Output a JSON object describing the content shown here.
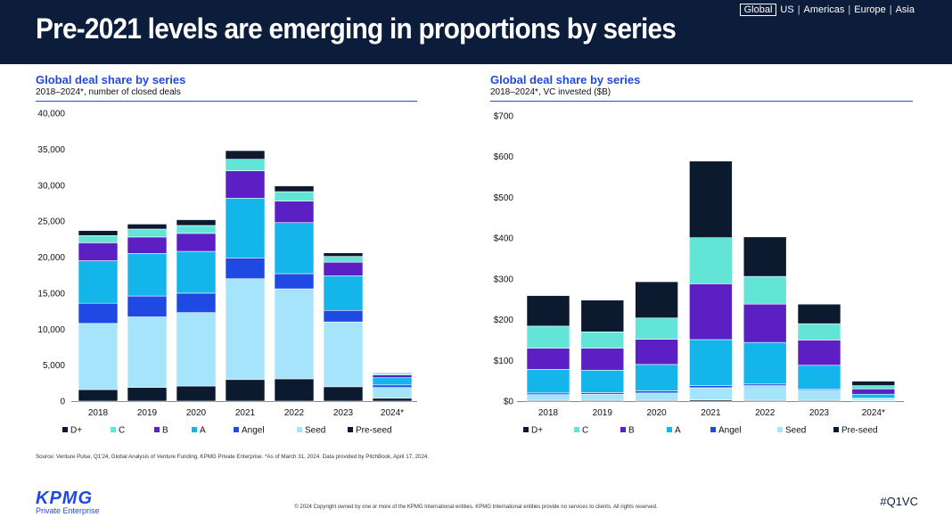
{
  "header": {
    "title": "Pre-2021 levels are emerging in proportions by series",
    "regions": [
      "Global",
      "US",
      "Americas",
      "Europe",
      "Asia"
    ],
    "active_region": "Global"
  },
  "colors": {
    "header_bg": "#0c1c3b",
    "accent": "#1e49e2",
    "series": {
      "D+": "#0c1a30",
      "C": "#62e4d7",
      "B": "#5b1fc4",
      "A": "#13b5ea",
      "Angel": "#1e49e2",
      "Seed": "#a6e4fb",
      "Pre-seed": "#0c1a30"
    }
  },
  "chart_data": [
    {
      "type": "bar",
      "stacked": true,
      "title": "Global deal share by series",
      "subtitle": "2018–2024*, number of closed deals",
      "categories": [
        "2018",
        "2019",
        "2020",
        "2021",
        "2022",
        "2023",
        "2024*"
      ],
      "ylim": [
        0,
        40000
      ],
      "yticks": [
        0,
        5000,
        10000,
        15000,
        20000,
        25000,
        30000,
        35000,
        40000
      ],
      "ytick_labels": [
        "0",
        "5,000",
        "10,000",
        "15,000",
        "20,000",
        "25,000",
        "30,000",
        "35,000",
        "40,000"
      ],
      "series": [
        {
          "name": "Pre-seed",
          "values": [
            1600,
            1900,
            2100,
            3000,
            3100,
            2000,
            400
          ]
        },
        {
          "name": "Seed",
          "values": [
            9200,
            9800,
            10200,
            14000,
            12500,
            9000,
            1500
          ]
        },
        {
          "name": "Angel",
          "values": [
            2800,
            2900,
            2700,
            2900,
            2100,
            1600,
            350
          ]
        },
        {
          "name": "A",
          "values": [
            5900,
            5900,
            5800,
            8300,
            7100,
            4800,
            1000
          ]
        },
        {
          "name": "B",
          "values": [
            2500,
            2300,
            2500,
            3800,
            3000,
            1900,
            400
          ]
        },
        {
          "name": "C",
          "values": [
            1000,
            1100,
            1100,
            1600,
            1300,
            800,
            200
          ]
        },
        {
          "name": "D+",
          "values": [
            700,
            700,
            800,
            1200,
            800,
            500,
            100
          ]
        }
      ],
      "legend": [
        "D+",
        "C",
        "B",
        "A",
        "Angel",
        "Seed",
        "Pre-seed"
      ],
      "legend_position": "bottom"
    },
    {
      "type": "bar",
      "stacked": true,
      "title": "Global deal share by series",
      "subtitle": "2018–2024*, VC invested ($B)",
      "categories": [
        "2018",
        "2019",
        "2020",
        "2021",
        "2022",
        "2023",
        "2024*"
      ],
      "ylim": [
        0,
        700
      ],
      "yticks": [
        0,
        100,
        200,
        300,
        400,
        500,
        600,
        700
      ],
      "ytick_labels": [
        "$0",
        "$100",
        "$200",
        "$300",
        "$400",
        "$500",
        "$600",
        "$700"
      ],
      "series": [
        {
          "name": "Pre-seed",
          "values": [
            2,
            2,
            2,
            3,
            2,
            2,
            1
          ]
        },
        {
          "name": "Seed",
          "values": [
            14,
            15,
            18,
            30,
            36,
            25,
            5
          ]
        },
        {
          "name": "Angel",
          "values": [
            4,
            4,
            5,
            5,
            4,
            3,
            1
          ]
        },
        {
          "name": "A",
          "values": [
            58,
            55,
            65,
            113,
            102,
            58,
            10
          ]
        },
        {
          "name": "B",
          "values": [
            52,
            54,
            62,
            137,
            94,
            62,
            13
          ]
        },
        {
          "name": "C",
          "values": [
            54,
            40,
            52,
            113,
            68,
            40,
            8
          ]
        },
        {
          "name": "D+",
          "values": [
            75,
            78,
            89,
            188,
            97,
            48,
            11
          ]
        }
      ],
      "legend": [
        "D+",
        "C",
        "B",
        "A",
        "Angel",
        "Seed",
        "Pre-seed"
      ],
      "legend_position": "bottom"
    }
  ],
  "source": "Source: Venture Pulse, Q1'24, Global Analysis of Venture Funding, KPMG Private Enterprise. *As of March 31, 2024. Data provided by PitchBook, April 17, 2024.",
  "footer": {
    "copyright": "© 2024 Copyright owned by one or more of the KPMG International entities. KPMG International entities provide no services to clients. All rights reserved.",
    "logo_text": "KPMG",
    "logo_sub": "Private Enterprise",
    "hashtag": "#Q1VC"
  }
}
